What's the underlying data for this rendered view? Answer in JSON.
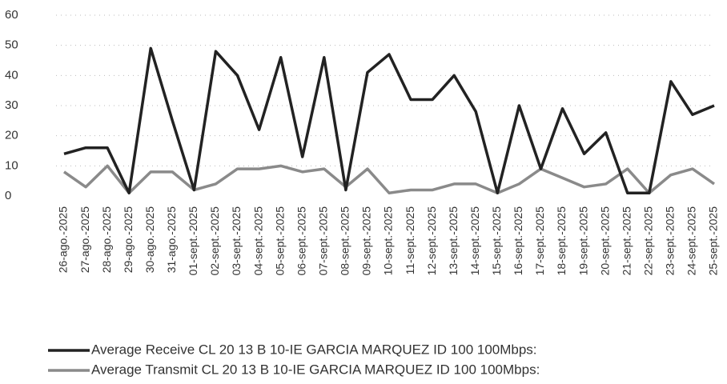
{
  "chart_data": {
    "type": "line",
    "categories": [
      "26-ago.-2025",
      "27-ago.-2025",
      "28-ago.-2025",
      "29-ago.-2025",
      "30-ago.-2025",
      "31-ago.-2025",
      "01-sept.-2025",
      "02-sept.-2025",
      "03-sept.-2025",
      "04-sept.-2025",
      "05-sept.-2025",
      "06-sept.-2025",
      "07-sept.-2025",
      "08-sept.-2025",
      "09-sept.-2025",
      "10-sept.-2025",
      "11-sept.-2025",
      "12-sept.-2025",
      "13-sept.-2025",
      "14-sept.-2025",
      "15-sept.-2025",
      "16-sept.-2025",
      "17-sept.-2025",
      "18-sept.-2025",
      "19-sept.-2025",
      "20-sept.-2025",
      "21-sept.-2025",
      "22-sept.-2025",
      "23-sept.-2025",
      "24-sept.-2025",
      "25-sept.-2025"
    ],
    "series": [
      {
        "name": "Average Receive CL 20 13 B 10-IE GARCIA MARQUEZ ID 100 100Mbps:",
        "color": "#222222",
        "values": [
          14,
          16,
          16,
          1,
          49,
          25,
          2,
          48,
          40,
          22,
          46,
          13,
          46,
          2,
          41,
          47,
          32,
          32,
          40,
          28,
          1,
          30,
          9,
          29,
          14,
          21,
          1,
          1,
          38,
          27,
          30
        ]
      },
      {
        "name": "Average Transmit CL 20 13 B 10-IE GARCIA MARQUEZ ID 100 100Mbps:",
        "color": "#8a8a8a",
        "values": [
          8,
          3,
          10,
          1,
          8,
          8,
          2,
          4,
          9,
          9,
          10,
          8,
          9,
          3,
          9,
          1,
          2,
          2,
          4,
          4,
          1,
          4,
          9,
          6,
          3,
          4,
          9,
          1,
          7,
          9,
          4
        ]
      }
    ],
    "ylim": [
      0,
      60
    ],
    "yticks": [
      0,
      10,
      20,
      30,
      40,
      50,
      60
    ],
    "grid": true
  }
}
